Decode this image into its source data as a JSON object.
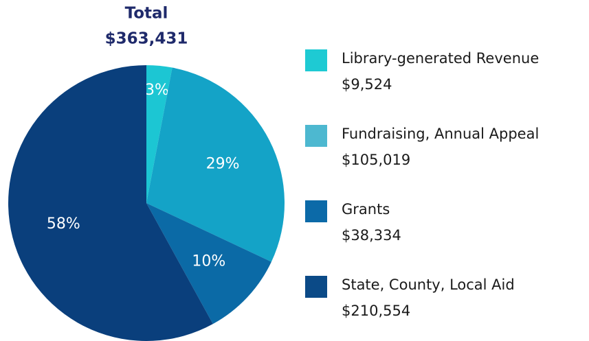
{
  "chart_data": {
    "type": "pie",
    "title": "Total",
    "subtitle": "$363,431",
    "categories": [
      "Library-generated Revenue",
      "Fundraising, Annual Appeal",
      "Grants",
      "State, County, Local Aid"
    ],
    "values": [
      3,
      29,
      10,
      58
    ],
    "value_labels": [
      "3%",
      "29%",
      "10%",
      "58%"
    ],
    "amounts": [
      "$9,524",
      "$105,019",
      "$38,334",
      "$210,554"
    ],
    "colors": [
      "#1cc6d3",
      "#14a3c7",
      "#0b6aa6",
      "#0a3f7c"
    ],
    "legend_colors": [
      "#1ecad3",
      "#4db8d0",
      "#0c6aa8",
      "#0b4a87"
    ],
    "legend": "right"
  }
}
